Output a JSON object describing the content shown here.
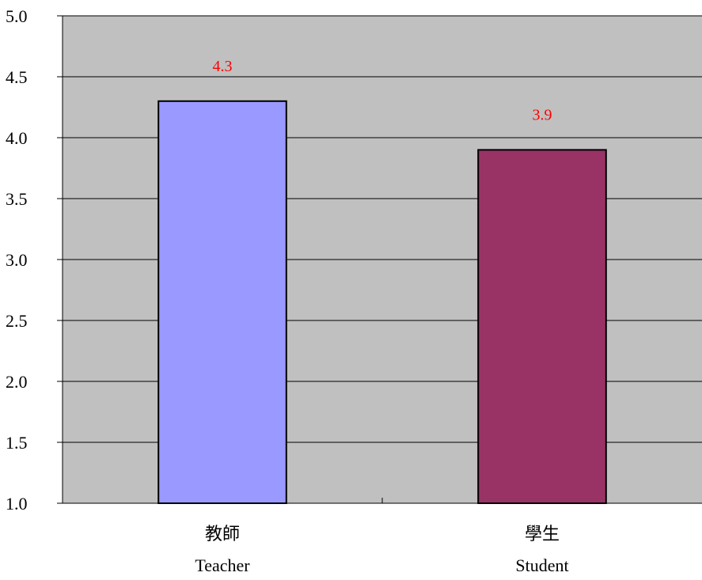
{
  "chart_data": {
    "type": "bar",
    "categories": [
      {
        "zh": "教師",
        "en": "Teacher"
      },
      {
        "zh": "學生",
        "en": "Student"
      }
    ],
    "values": [
      4.3,
      3.9
    ],
    "data_labels": [
      "4.3",
      "3.9"
    ],
    "ylim": [
      1.0,
      5.0
    ],
    "yticks": [
      "1.0",
      "1.5",
      "2.0",
      "2.5",
      "3.0",
      "3.5",
      "4.0",
      "4.5",
      "5.0"
    ],
    "grid": true,
    "legend": "none",
    "colors": {
      "plot_background": "#c0c0c0",
      "bars": [
        "#9999ff",
        "#993366"
      ],
      "data_label": "#ff0000",
      "gridline": "#000000"
    }
  }
}
